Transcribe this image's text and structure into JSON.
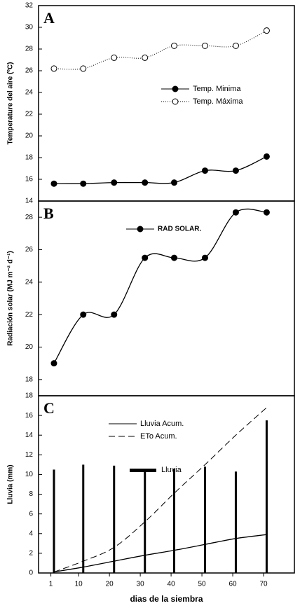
{
  "chart_data": [
    {
      "type": "line",
      "label": "A",
      "ylabel": "Temperature del aire (ºC)",
      "x": [
        2,
        11.5,
        21.5,
        31.5,
        41,
        51,
        61,
        71
      ],
      "xlim": [
        -3,
        80
      ],
      "ylim": [
        14,
        32
      ],
      "yticks": [
        14,
        16,
        18,
        20,
        22,
        24,
        26,
        28,
        30,
        32
      ],
      "series": [
        {
          "name": "Temp. Minima",
          "color": "#000000",
          "marker": "filled",
          "dash": false,
          "values": [
            15.6,
            15.6,
            15.7,
            15.7,
            15.7,
            16.8,
            16.8,
            18.1
          ]
        },
        {
          "name": "Temp. Máxima",
          "color": "#000000",
          "marker": "open",
          "dash": "dotted",
          "values": [
            26.2,
            26.2,
            27.2,
            27.2,
            28.3,
            28.3,
            28.3,
            29.7
          ]
        }
      ]
    },
    {
      "type": "line",
      "label": "B",
      "ylabel": "Radiación solar (MJ m⁻² d⁻¹)",
      "x": [
        2,
        11.5,
        21.5,
        31.5,
        41,
        51,
        61,
        71
      ],
      "xlim": [
        -3,
        80
      ],
      "ylim": [
        17,
        29
      ],
      "yticks": [
        18,
        20,
        22,
        24,
        26,
        28
      ],
      "series": [
        {
          "name": "RAD SOLAR.",
          "color": "#000000",
          "marker": "filled",
          "dash": false,
          "values": [
            19.0,
            22.0,
            22.0,
            25.5,
            25.5,
            25.5,
            28.3,
            28.3
          ]
        }
      ]
    },
    {
      "type": "line",
      "label": "C",
      "ylabel": "Lluvia (mm)",
      "xlabel": "dias de la siembra",
      "x": [
        2,
        11.5,
        21.5,
        31.5,
        41,
        51,
        61,
        71
      ],
      "xlim": [
        -3,
        80
      ],
      "xticks": [
        1,
        10,
        20,
        30,
        40,
        50,
        60,
        70
      ],
      "ylim": [
        0,
        18
      ],
      "yticks": [
        0,
        2,
        4,
        6,
        8,
        10,
        12,
        14,
        16,
        18
      ],
      "series": [
        {
          "name": "Lluvia Acum.",
          "color": "#000000",
          "marker": "none",
          "dash": false,
          "values": [
            0.1,
            0.6,
            1.2,
            1.8,
            2.3,
            2.9,
            3.5,
            3.9
          ]
        },
        {
          "name": "ETo Acum.",
          "color": "#000000",
          "marker": "none",
          "dash": "dashed",
          "values": [
            0.1,
            1.2,
            2.6,
            5.2,
            8.1,
            11.0,
            14.0,
            16.8
          ]
        },
        {
          "name": "Lluvia",
          "color": "#000000",
          "kind": "bar",
          "values": [
            10.5,
            11.0,
            10.9,
            10.6,
            10.6,
            10.8,
            10.3,
            15.5
          ]
        }
      ]
    }
  ]
}
